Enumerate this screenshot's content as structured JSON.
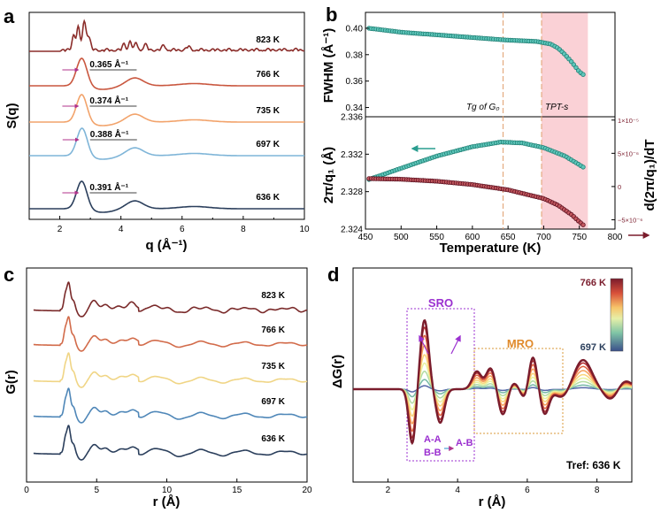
{
  "chart_data": [
    {
      "panel": "a",
      "type": "line",
      "xlabel": "q (Å⁻¹)",
      "ylabel": "S(q)",
      "xlim": [
        1,
        10
      ],
      "xticks": [
        "2",
        "4",
        "6",
        "8",
        "10"
      ],
      "series": [
        {
          "name": "636 K",
          "color": "#2b3f5c",
          "peak_label": "0.391 Å⁻¹",
          "peak_q": 2.72
        },
        {
          "name": "697 K",
          "color": "#7fb5d8",
          "peak_label": "0.388 Å⁻¹",
          "peak_q": 2.73
        },
        {
          "name": "735 K",
          "color": "#f2a36b",
          "peak_label": "0.374 Å⁻¹",
          "peak_q": 2.72
        },
        {
          "name": "766 K",
          "color": "#c9573f",
          "peak_label": "0.365 Å⁻¹",
          "peak_q": 2.72
        },
        {
          "name": "823 K",
          "color": "#8b2d2a",
          "peak_label": "",
          "peak_q": 2.8
        }
      ]
    },
    {
      "panel": "b",
      "type": "scatter",
      "xlabel": "Temperature (K)",
      "xlim": [
        450,
        800
      ],
      "xticks": [
        "450",
        "500",
        "550",
        "600",
        "650",
        "700",
        "750",
        "800"
      ],
      "top": {
        "ylabel": "FWHM (Å⁻¹)",
        "ylim": [
          0.333,
          0.412
        ],
        "yticks": [
          "0.34",
          "0.36",
          "0.38",
          "0.40"
        ],
        "color": "#2a9d8f",
        "x": [
          455,
          500,
          550,
          600,
          650,
          690,
          700,
          710,
          720,
          730,
          740,
          750,
          758
        ],
        "y": [
          0.4,
          0.397,
          0.395,
          0.393,
          0.391,
          0.39,
          0.389,
          0.388,
          0.385,
          0.38,
          0.374,
          0.367,
          0.364
        ]
      },
      "bottom": {
        "ylabel": "2π/q₁ (Å)",
        "ylim": [
          2.324,
          2.336
        ],
        "yticks": [
          "2.324",
          "2.328",
          "2.332",
          "2.336"
        ],
        "color": "#2a9d8f",
        "x": [
          455,
          500,
          550,
          600,
          640,
          670,
          700,
          730,
          758
        ],
        "y": [
          2.3293,
          2.3305,
          2.3318,
          2.3328,
          2.3333,
          2.3332,
          2.3327,
          2.3318,
          2.3305
        ]
      },
      "derivative": {
        "ylabel": "d(2π/q₁)/dT",
        "ylim": [
          -6.4e-06,
          1.05e-05
        ],
        "yticks": [
          "1×10⁻⁵",
          "5×10⁻⁶",
          "0",
          "−5×10⁻⁶"
        ],
        "color": "#7a1c2c",
        "x": [
          455,
          500,
          550,
          600,
          650,
          700,
          720,
          740,
          750,
          758
        ],
        "y": [
          1.2e-06,
          1.1e-06,
          8e-07,
          3e-07,
          -5e-07,
          -1.8e-06,
          -2.8e-06,
          -4.3e-06,
          -5.3e-06,
          -6e-06
        ]
      },
      "annotations": {
        "tg": "Tg of G₀",
        "tg_value": 643,
        "tpt": "TPT-s",
        "tpt_value": 697,
        "shaded_range": [
          697,
          762
        ]
      }
    },
    {
      "panel": "c",
      "type": "line",
      "xlabel": "r (Å)",
      "ylabel": "G(r)",
      "xlim": [
        0,
        20
      ],
      "xticks": [
        "0",
        "5",
        "10",
        "15",
        "20"
      ],
      "series": [
        {
          "name": "636 K",
          "color": "#2b3f5c"
        },
        {
          "name": "697 K",
          "color": "#4f87b8"
        },
        {
          "name": "735 K",
          "color": "#f0d585"
        },
        {
          "name": "766 K",
          "color": "#d26b4a"
        },
        {
          "name": "823 K",
          "color": "#7a2a2a"
        }
      ]
    },
    {
      "panel": "d",
      "type": "line",
      "xlabel": "r (Å)",
      "ylabel": "ΔG(r)",
      "xlim": [
        1,
        9
      ],
      "xticks": [
        "2",
        "4",
        "6",
        "8"
      ],
      "colorbar": {
        "top": "766 K",
        "bottom": "697 K"
      },
      "sro_label": "SRO",
      "mro_label": "MRO",
      "aa_label": "A-A",
      "bb_label": "B-B",
      "ab_label": "A-B",
      "tref_label": "Tref: 636 K"
    }
  ]
}
